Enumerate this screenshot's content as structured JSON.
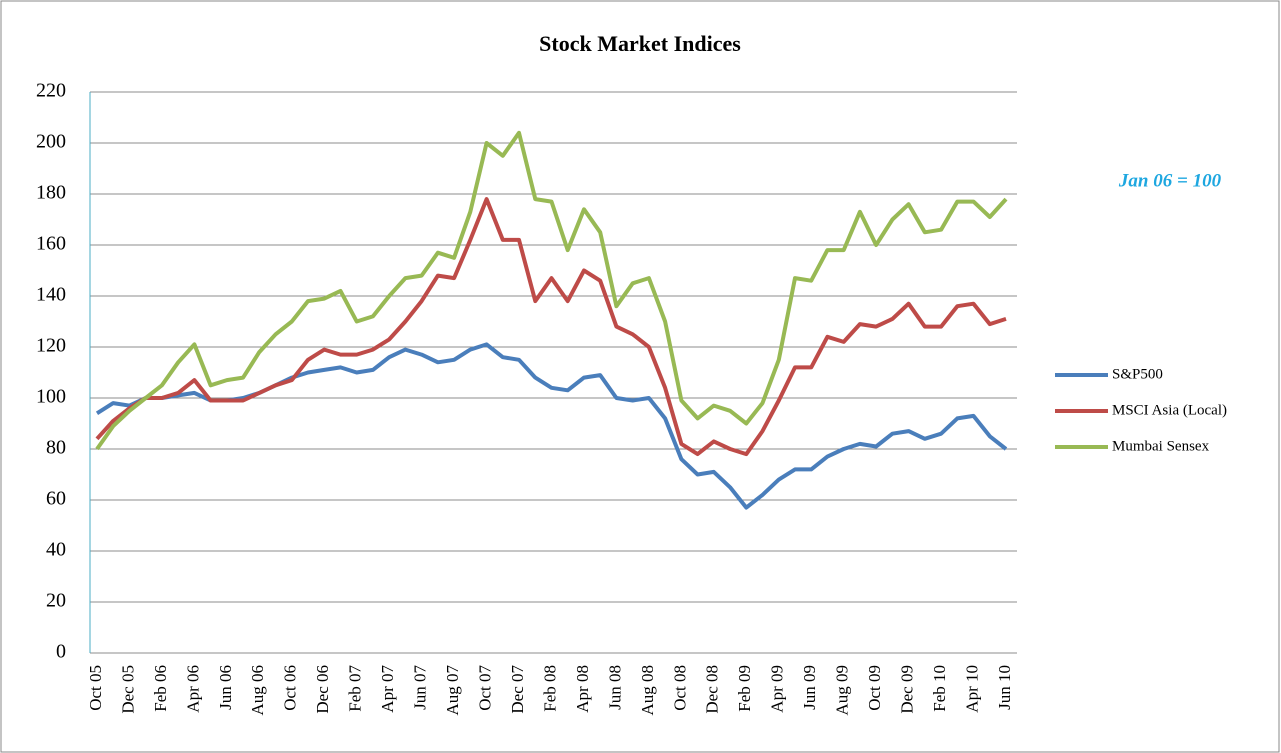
{
  "chart_data": {
    "type": "line",
    "title": "Stock Market Indices",
    "annotation": "Jan 06 = 100",
    "categories": [
      "Oct 05",
      null,
      "Dec 05",
      null,
      "Feb 06",
      null,
      "Apr 06",
      null,
      "Jun 06",
      null,
      "Aug 06",
      null,
      "Oct 06",
      null,
      "Dec 06",
      null,
      "Feb 07",
      null,
      "Apr 07",
      null,
      "Jun 07",
      null,
      "Aug 07",
      null,
      "Oct 07",
      null,
      "Dec 07",
      null,
      "Feb 08",
      null,
      "Apr 08",
      null,
      "Jun 08",
      null,
      "Aug 08",
      null,
      "Oct 08",
      null,
      "Dec 08",
      null,
      "Feb 09",
      null,
      "Apr 09",
      null,
      "Jun 09",
      null,
      "Aug 09",
      null,
      "Oct 09",
      null,
      "Dec 09",
      null,
      "Feb 10",
      null,
      "Apr 10",
      null,
      "Jun 10"
    ],
    "series": [
      {
        "name": "S&P500",
        "color": "#4a7ebb",
        "values": [
          94,
          98,
          97,
          100,
          100,
          101,
          102,
          99,
          99,
          100,
          102,
          105,
          108,
          110,
          111,
          112,
          110,
          111,
          116,
          119,
          117,
          114,
          115,
          119,
          121,
          116,
          115,
          108,
          104,
          103,
          108,
          109,
          100,
          99,
          100,
          92,
          76,
          70,
          71,
          65,
          57,
          62,
          68,
          72,
          72,
          77,
          80,
          82,
          81,
          86,
          87,
          84,
          86,
          92,
          93,
          85,
          80
        ]
      },
      {
        "name": "MSCI Asia (Local)",
        "color": "#be4b48",
        "values": [
          84,
          91,
          96,
          100,
          100,
          102,
          107,
          99,
          99,
          99,
          102,
          105,
          107,
          115,
          119,
          117,
          117,
          119,
          123,
          130,
          138,
          148,
          147,
          162,
          178,
          162,
          162,
          138,
          147,
          138,
          150,
          146,
          128,
          125,
          120,
          104,
          82,
          78,
          83,
          80,
          78,
          87,
          99,
          112,
          112,
          124,
          122,
          129,
          128,
          131,
          137,
          128,
          128,
          136,
          137,
          129,
          131
        ]
      },
      {
        "name": "Mumbai Sensex",
        "color": "#98b954",
        "values": [
          80,
          89,
          95,
          100,
          105,
          114,
          121,
          105,
          107,
          108,
          118,
          125,
          130,
          138,
          139,
          142,
          130,
          132,
          140,
          147,
          148,
          157,
          155,
          173,
          200,
          195,
          204,
          178,
          177,
          158,
          174,
          165,
          136,
          145,
          147,
          130,
          99,
          92,
          97,
          95,
          90,
          98,
          115,
          147,
          146,
          158,
          158,
          173,
          160,
          170,
          176,
          165,
          166,
          177,
          177,
          171,
          178
        ]
      }
    ],
    "ylim": [
      0,
      220
    ],
    "yticks": [
      0,
      20,
      40,
      60,
      80,
      100,
      120,
      140,
      160,
      180,
      200,
      220
    ],
    "grid": true,
    "legend": "right"
  }
}
